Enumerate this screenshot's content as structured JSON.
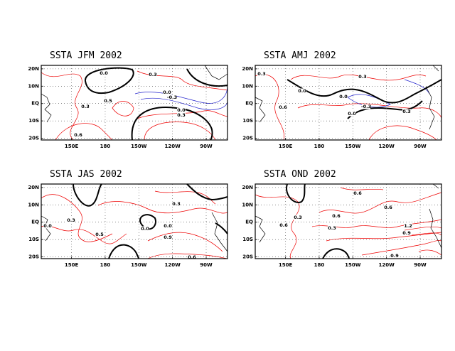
{
  "chart_data": [
    {
      "type": "contour",
      "title": "SSTA JFM 2002",
      "xlim": [
        123,
        289
      ],
      "ylim": [
        -21,
        22
      ],
      "xticks": [
        {
          "value": 150,
          "label": "150E"
        },
        180,
        {
          "value": 210,
          "label": "150W"
        },
        {
          "value": 240,
          "label": "120W"
        },
        {
          "value": 270,
          "label": "90W"
        }
      ],
      "yticks": [
        {
          "value": 20,
          "label": "20N"
        },
        {
          "value": 10,
          "label": "10N"
        },
        {
          "value": 0,
          "label": "EQ"
        },
        {
          "value": -10,
          "label": "10S"
        },
        {
          "value": -20,
          "label": "20S"
        }
      ],
      "grid": true,
      "contour_labels": [
        {
          "value": 0,
          "label": "0.0"
        },
        0.3,
        {
          "value": 0,
          "label": "0.0"
        },
        -0.3,
        0.3,
        0.5,
        {
          "value": 0,
          "label": "0.0"
        },
        0.3,
        0.6
      ]
    },
    {
      "type": "contour",
      "title": "SSTA AMJ 2002",
      "xlim": [
        123,
        289
      ],
      "ylim": [
        -21,
        22
      ],
      "xticks": [
        {
          "value": 150,
          "label": "150E"
        },
        180,
        {
          "value": 210,
          "label": "150W"
        },
        {
          "value": 240,
          "label": "120W"
        },
        {
          "value": 270,
          "label": "90W"
        }
      ],
      "yticks": [
        {
          "value": 20,
          "label": "20N"
        },
        {
          "value": 10,
          "label": "10N"
        },
        {
          "value": 0,
          "label": "EQ"
        },
        {
          "value": -10,
          "label": "10S"
        },
        {
          "value": -20,
          "label": "20S"
        }
      ],
      "grid": true,
      "contour_labels": [
        0.3,
        0.3,
        {
          "value": 0,
          "label": "0.0"
        },
        {
          "value": 0,
          "label": "0.0"
        },
        -0.3,
        0.6,
        {
          "value": 0,
          "label": "0.0"
        },
        0.3
      ]
    },
    {
      "type": "contour",
      "title": "SSTA JAS 2002",
      "xlim": [
        123,
        289
      ],
      "ylim": [
        -21,
        22
      ],
      "xticks": [
        {
          "value": 150,
          "label": "150E"
        },
        180,
        {
          "value": 210,
          "label": "150W"
        },
        {
          "value": 240,
          "label": "120W"
        },
        {
          "value": 270,
          "label": "90W"
        }
      ],
      "yticks": [
        {
          "value": 20,
          "label": "20N"
        },
        {
          "value": 10,
          "label": "10N"
        },
        {
          "value": 0,
          "label": "EQ"
        },
        {
          "value": -10,
          "label": "10S"
        },
        {
          "value": -20,
          "label": "20S"
        }
      ],
      "grid": true,
      "contour_labels": [
        0.3,
        {
          "value": 0,
          "label": "0.0"
        },
        0.3,
        0.5,
        {
          "value": 0,
          "label": "0.0"
        },
        {
          "value": 0,
          "label": "0.0"
        },
        0.9,
        0.6
      ]
    },
    {
      "type": "contour",
      "title": "SSTA OND 2002",
      "xlim": [
        123,
        289
      ],
      "ylim": [
        -21,
        22
      ],
      "xticks": [
        {
          "value": 150,
          "label": "150E"
        },
        180,
        {
          "value": 210,
          "label": "150W"
        },
        {
          "value": 240,
          "label": "120W"
        },
        {
          "value": 270,
          "label": "90W"
        }
      ],
      "yticks": [
        {
          "value": 20,
          "label": "20N"
        },
        {
          "value": 10,
          "label": "10N"
        },
        {
          "value": 0,
          "label": "EQ"
        },
        {
          "value": -10,
          "label": "10S"
        },
        {
          "value": -20,
          "label": "20S"
        }
      ],
      "grid": true,
      "contour_labels": [
        0.6,
        0.6,
        0.3,
        0.6,
        0.3,
        0.6,
        0.9,
        1.2,
        0.9
      ]
    }
  ]
}
